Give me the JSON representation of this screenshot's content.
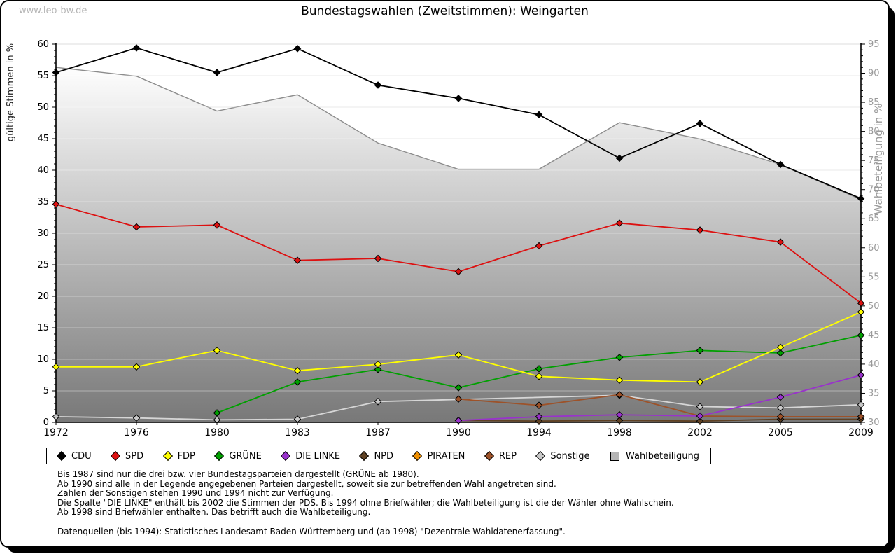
{
  "page": {
    "watermark": "www.leo-bw.de",
    "title": "Bundestagswahlen (Zweitstimmen): Weingarten"
  },
  "chart_data": {
    "type": "line",
    "title": "Bundestagswahlen (Zweitstimmen): Weingarten",
    "x_categories": [
      "1972",
      "1976",
      "1980",
      "1983",
      "1987",
      "1990",
      "1994",
      "1998",
      "2002",
      "2005",
      "2009"
    ],
    "left_axis": {
      "label": "gültige Stimmen in %",
      "min": 0,
      "max": 60,
      "tick_step": 5
    },
    "right_axis": {
      "label": "Wahlbeteiligung in %",
      "min": 30,
      "max": 95,
      "tick_step": 5
    },
    "grid": true,
    "legend_position": "bottom",
    "series": [
      {
        "name": "CDU",
        "axis": "left",
        "style": "line",
        "color": "#000000",
        "values": [
          55.5,
          59.4,
          55.5,
          59.3,
          53.5,
          51.4,
          48.8,
          41.9,
          47.4,
          40.9,
          35.5
        ]
      },
      {
        "name": "SPD",
        "axis": "left",
        "style": "line",
        "color": "#dd1111",
        "values": [
          34.6,
          31.0,
          31.3,
          25.7,
          26.0,
          23.9,
          28.0,
          31.6,
          30.5,
          28.6,
          18.9
        ]
      },
      {
        "name": "FDP",
        "axis": "left",
        "style": "line",
        "color": "#ffff00",
        "values": [
          8.8,
          8.8,
          11.4,
          8.2,
          9.2,
          10.7,
          7.3,
          6.7,
          6.4,
          11.9,
          17.5
        ]
      },
      {
        "name": "GRÜNE",
        "axis": "left",
        "style": "line",
        "color": "#00a000",
        "values": [
          null,
          null,
          1.5,
          6.4,
          8.4,
          5.5,
          8.5,
          10.3,
          11.4,
          11.0,
          13.8
        ]
      },
      {
        "name": "DIE LINKE",
        "axis": "left",
        "style": "line",
        "color": "#9932cc",
        "values": [
          null,
          null,
          null,
          null,
          null,
          0.3,
          0.9,
          1.2,
          1.0,
          4.0,
          7.5
        ]
      },
      {
        "name": "NPD",
        "axis": "left",
        "style": "line",
        "color": "#5f4123",
        "values": [
          null,
          null,
          null,
          null,
          null,
          0.3,
          0.2,
          0.3,
          0.2,
          0.5,
          0.5
        ]
      },
      {
        "name": "PIRATEN",
        "axis": "left",
        "style": "line",
        "color": "#ef8f00",
        "values": [
          null,
          null,
          null,
          null,
          null,
          null,
          null,
          null,
          null,
          null,
          0.9
        ]
      },
      {
        "name": "REP",
        "axis": "left",
        "style": "line",
        "color": "#9d5229",
        "values": [
          null,
          null,
          null,
          null,
          null,
          3.7,
          2.7,
          4.4,
          1.0,
          0.9,
          0.9
        ]
      },
      {
        "name": "Sonstige",
        "axis": "left",
        "style": "line",
        "color": "#c9c9c9",
        "values": [
          0.9,
          0.7,
          0.4,
          0.5,
          3.3,
          null,
          null,
          4.3,
          2.5,
          2.3,
          2.8
        ]
      },
      {
        "name": "Wahlbeteiligung",
        "axis": "right",
        "style": "area",
        "color": "#8c8c8c",
        "values": [
          91.0,
          89.5,
          83.5,
          86.3,
          78.0,
          73.5,
          73.5,
          81.5,
          78.7,
          74.3,
          68.3
        ]
      }
    ]
  },
  "legend": {
    "items": [
      {
        "label": "CDU",
        "color": "#000000",
        "marker": "diamond"
      },
      {
        "label": "SPD",
        "color": "#dd1111",
        "marker": "diamond"
      },
      {
        "label": "FDP",
        "color": "#ffff00",
        "marker": "diamond"
      },
      {
        "label": "GRÜNE",
        "color": "#00a000",
        "marker": "diamond"
      },
      {
        "label": "DIE LINKE",
        "color": "#9932cc",
        "marker": "diamond"
      },
      {
        "label": "NPD",
        "color": "#5f4123",
        "marker": "diamond"
      },
      {
        "label": "PIRATEN",
        "color": "#ef8f00",
        "marker": "diamond"
      },
      {
        "label": "REP",
        "color": "#9d5229",
        "marker": "diamond"
      },
      {
        "label": "Sonstige",
        "color": "#c9c9c9",
        "marker": "diamond"
      },
      {
        "label": "Wahlbeteiligung",
        "color": "#b5b5b5",
        "marker": "square"
      }
    ]
  },
  "footnotes": {
    "lines": [
      "Bis 1987 sind nur die drei bzw. vier Bundestagsparteien dargestellt (GRÜNE ab 1980).",
      "Ab 1990 sind alle in der Legende angegebenen Parteien dargestellt, soweit sie zur betreffenden Wahl angetreten sind.",
      "Zahlen der Sonstigen stehen 1990 und 1994 nicht zur Verfügung.",
      "Die Spalte \"DIE LINKE\" enthält bis 2002 die Stimmen der PDS. Bis 1994 ohne Briefwähler; die Wahlbeteiligung ist die der Wähler ohne Wahlschein.",
      "Ab 1998 sind Briefwähler enthalten. Das betrifft auch die Wahlbeteiligung.",
      "",
      "Datenquellen (bis 1994): Statistisches Landesamt Baden-Württemberg und (ab 1998) \"Dezentrale Wahldatenerfassung\"."
    ]
  }
}
